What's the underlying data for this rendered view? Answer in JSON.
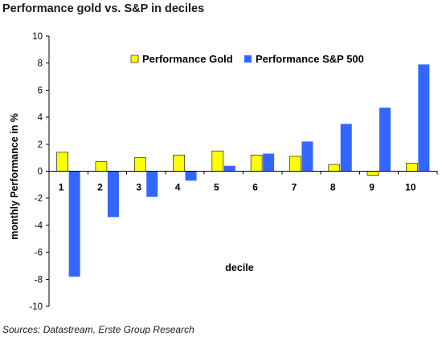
{
  "title": "Performance gold vs. S&P in deciles",
  "source": "Sources: Datastream, Erste Group Research",
  "chart_data": {
    "type": "bar",
    "categories": [
      "1",
      "2",
      "3",
      "4",
      "5",
      "6",
      "7",
      "8",
      "9",
      "10"
    ],
    "series": [
      {
        "name": "Performance Gold",
        "color": "#ffff00",
        "values": [
          1.4,
          0.7,
          1.0,
          1.2,
          1.5,
          1.2,
          1.1,
          0.5,
          -0.3,
          0.6
        ]
      },
      {
        "name": "Performance S&P 500",
        "color": "#3366ff",
        "values": [
          -7.8,
          -3.4,
          -1.9,
          -0.7,
          0.4,
          1.3,
          2.2,
          3.5,
          4.7,
          7.9
        ]
      }
    ],
    "xlabel": "decile",
    "ylabel": "monthly Performance in %",
    "ylim": [
      -10,
      10
    ],
    "yticks": [
      -10,
      -8,
      -6,
      -4,
      -2,
      0,
      2,
      4,
      6,
      8,
      10
    ],
    "grid": false,
    "legend_position": "top"
  }
}
